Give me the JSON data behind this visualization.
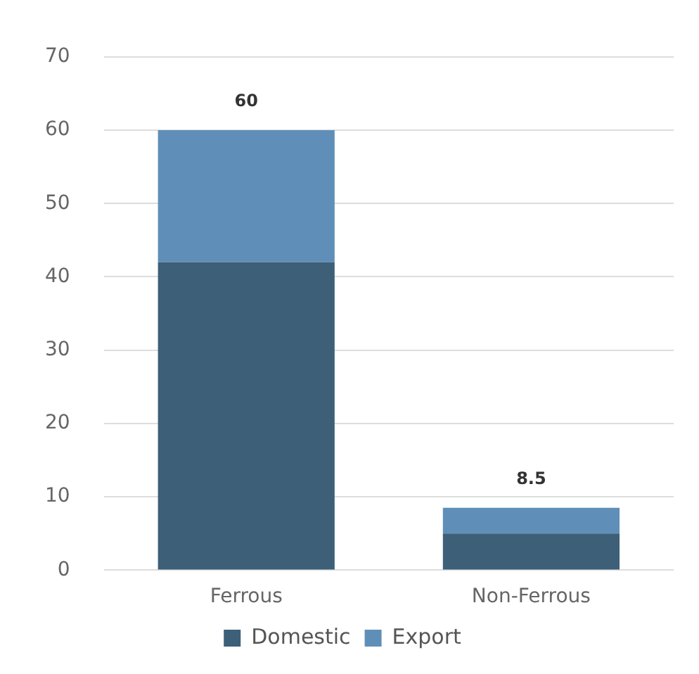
{
  "chart_data": {
    "type": "bar",
    "stacked": true,
    "categories": [
      "Ferrous",
      "Non-Ferrous"
    ],
    "series": [
      {
        "name": "Domestic",
        "color": "#3d5f78",
        "values": [
          42,
          5
        ]
      },
      {
        "name": "Export",
        "color": "#5f8fb8",
        "values": [
          18,
          3.5
        ]
      }
    ],
    "totals": [
      "60",
      "8.5"
    ],
    "ylim": [
      0,
      70
    ],
    "yticks": [
      0,
      10,
      20,
      30,
      40,
      50,
      60,
      70
    ],
    "grid": "y",
    "legend": "bottom"
  }
}
